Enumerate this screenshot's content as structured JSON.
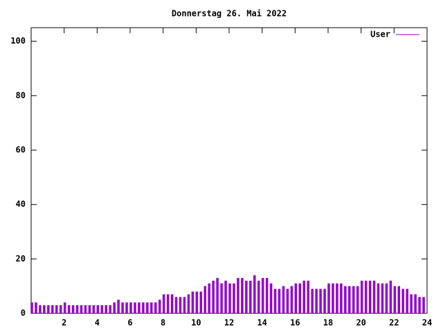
{
  "chart_data": {
    "type": "impulse",
    "title": "Donnerstag 26. Mai 2022",
    "series": [
      {
        "name": "User",
        "color": "#9400d3",
        "x": [
          0,
          0.25,
          0.5,
          0.75,
          1,
          1.25,
          1.5,
          1.75,
          2,
          2.25,
          2.5,
          2.75,
          3,
          3.25,
          3.5,
          3.75,
          4,
          4.25,
          4.5,
          4.75,
          5,
          5.25,
          5.5,
          5.75,
          6,
          6.25,
          6.5,
          6.75,
          7,
          7.25,
          7.5,
          7.75,
          8,
          8.25,
          8.5,
          8.75,
          9,
          9.25,
          9.5,
          9.75,
          10,
          10.25,
          10.5,
          10.75,
          11,
          11.25,
          11.5,
          11.75,
          12,
          12.25,
          12.5,
          12.75,
          13,
          13.25,
          13.5,
          13.75,
          14,
          14.25,
          14.5,
          14.75,
          15,
          15.25,
          15.5,
          15.75,
          16,
          16.25,
          16.5,
          16.75,
          17,
          17.25,
          17.5,
          17.75,
          18,
          18.25,
          18.5,
          18.75,
          19,
          19.25,
          19.5,
          19.75,
          20,
          20.25,
          20.5,
          20.75,
          21,
          21.25,
          21.5,
          21.75,
          22,
          22.25,
          22.5,
          22.75,
          23,
          23.25,
          23.5,
          23.75
        ],
        "values": [
          4,
          4,
          3,
          3,
          3,
          3,
          3,
          3,
          4,
          3,
          3,
          3,
          3,
          3,
          3,
          3,
          3,
          3,
          3,
          3,
          4,
          5,
          4,
          4,
          4,
          4,
          4,
          4,
          4,
          4,
          4,
          5,
          7,
          7,
          7,
          6,
          6,
          6,
          7,
          8,
          8,
          8,
          10,
          11,
          12,
          13,
          11,
          12,
          11,
          11,
          13,
          13,
          12,
          12,
          14,
          12,
          13,
          13,
          11,
          9,
          9,
          10,
          9,
          10,
          11,
          11,
          12,
          12,
          9,
          9,
          9,
          9,
          11,
          11,
          11,
          11,
          10,
          10,
          10,
          10,
          12,
          12,
          12,
          12,
          11,
          11,
          11,
          12,
          10,
          10,
          9,
          9,
          7,
          7,
          6,
          6
        ]
      }
    ],
    "xlim": [
      0,
      24
    ],
    "xticks": [
      2,
      4,
      6,
      8,
      10,
      12,
      14,
      16,
      18,
      20,
      22,
      24
    ],
    "ylim": [
      0,
      105
    ],
    "yticks": [
      0,
      20,
      40,
      60,
      80,
      100
    ],
    "legend": "top-right"
  }
}
